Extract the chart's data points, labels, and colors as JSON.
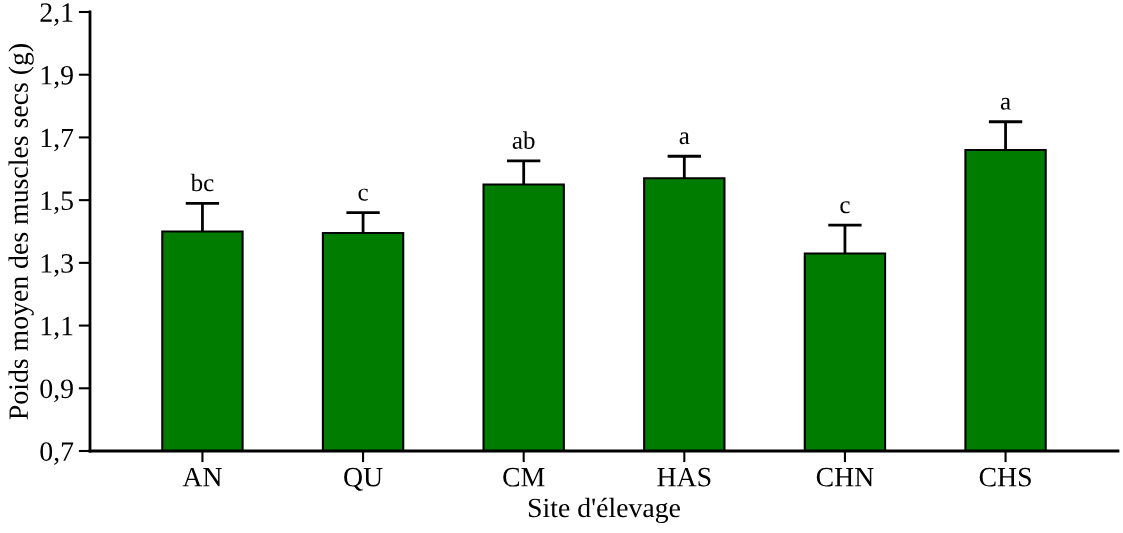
{
  "chart_data": {
    "type": "bar",
    "xlabel": "Site d'élevage",
    "ylabel": "Poids moyen des muscles secs (g)",
    "categories": [
      "AN",
      "QU",
      "CM",
      "HAS",
      "CHN",
      "CHS"
    ],
    "values": [
      1.4,
      1.395,
      1.55,
      1.57,
      1.33,
      1.66
    ],
    "errors": [
      0.09,
      0.065,
      0.075,
      0.07,
      0.09,
      0.09
    ],
    "color": "#007d00",
    "ylim": [
      0.7,
      2.1
    ],
    "yticks": [
      {
        "value": 0.7,
        "label": "0,7"
      },
      {
        "value": 0.9,
        "label": "0,9"
      },
      {
        "value": 1.1,
        "label": "1,1"
      },
      {
        "value": 1.3,
        "label": "1,3"
      },
      {
        "value": 1.5,
        "label": "1,5"
      },
      {
        "value": 1.7,
        "label": "1,7"
      },
      {
        "value": 1.9,
        "label": "1,9"
      },
      {
        "value": 2.1,
        "label": "2,1"
      }
    ],
    "annotations": [
      "bc",
      "c",
      "ab",
      "a",
      "c",
      "a"
    ],
    "grid": false,
    "legend": false
  }
}
